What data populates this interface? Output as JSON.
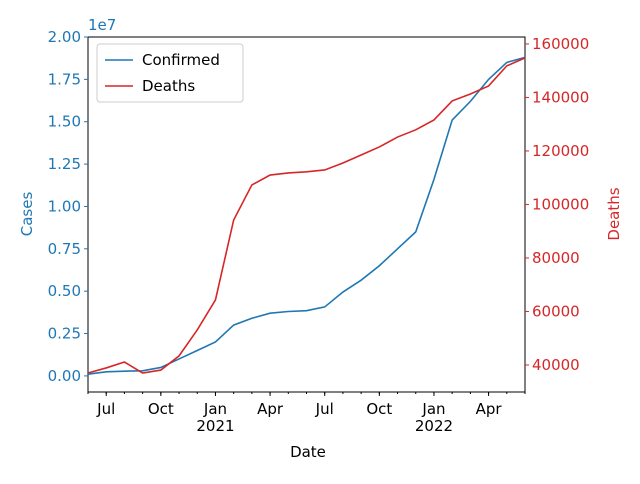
{
  "chart_data": {
    "type": "line",
    "x_label": "Date",
    "y_label": "Cases",
    "y2_label": "Deaths",
    "y_offset_label": "1e7",
    "x": [
      "2020-06",
      "2020-07",
      "2020-08",
      "2020-09",
      "2020-10",
      "2020-11",
      "2020-12",
      "2021-01",
      "2021-02",
      "2021-03",
      "2021-04",
      "2021-05",
      "2021-06",
      "2021-07",
      "2021-08",
      "2021-09",
      "2021-10",
      "2021-11",
      "2021-12",
      "2022-01",
      "2022-02",
      "2022-03",
      "2022-04",
      "2022-05",
      "2022-06"
    ],
    "xlim": [
      "2020-06",
      "2022-06"
    ],
    "xticks": [
      {
        "value": "2020-07",
        "label": "Jul"
      },
      {
        "value": "2020-10",
        "label": "Oct"
      },
      {
        "value": "2021-01",
        "label": "Jan\n2021"
      },
      {
        "value": "2021-04",
        "label": "Apr"
      },
      {
        "value": "2021-07",
        "label": "Jul"
      },
      {
        "value": "2021-10",
        "label": "Oct"
      },
      {
        "value": "2022-01",
        "label": "Jan\n2022"
      },
      {
        "value": "2022-04",
        "label": "Apr"
      }
    ],
    "ylim": [
      -950000,
      20000000
    ],
    "yticks": [
      {
        "value": 0,
        "label": "0.00"
      },
      {
        "value": 2500000,
        "label": "0.25"
      },
      {
        "value": 5000000,
        "label": "0.50"
      },
      {
        "value": 7500000,
        "label": "0.75"
      },
      {
        "value": 10000000,
        "label": "1.00"
      },
      {
        "value": 12500000,
        "label": "1.25"
      },
      {
        "value": 15000000,
        "label": "1.50"
      },
      {
        "value": 17500000,
        "label": "1.75"
      },
      {
        "value": 20000000,
        "label": "2.00"
      }
    ],
    "y2lim": [
      29900,
      162600
    ],
    "y2ticks": [
      40000,
      60000,
      80000,
      100000,
      120000,
      140000,
      160000
    ],
    "y_color": "#1f77b4",
    "y2_color": "#d62728",
    "legend": "upper left",
    "series": [
      {
        "name": "Confirmed",
        "color": "#1f77b4",
        "values": [
          100000,
          240000,
          280000,
          300000,
          500000,
          1000000,
          1500000,
          2000000,
          3000000,
          3400000,
          3700000,
          3800000,
          3850000,
          4070000,
          4950000,
          5650000,
          6500000,
          7500000,
          8500000,
          11600000,
          15100000,
          16200000,
          17500000,
          18500000,
          18800000
        ]
      },
      {
        "name": "Deaths",
        "color": "#d62728",
        "axis": "y2",
        "values": [
          37000,
          38900,
          41100,
          37000,
          38100,
          43400,
          53100,
          64300,
          94200,
          107300,
          111000,
          111800,
          112200,
          112900,
          115500,
          118500,
          121500,
          125200,
          127900,
          131600,
          138700,
          141300,
          144300,
          151800,
          154800
        ]
      }
    ]
  }
}
